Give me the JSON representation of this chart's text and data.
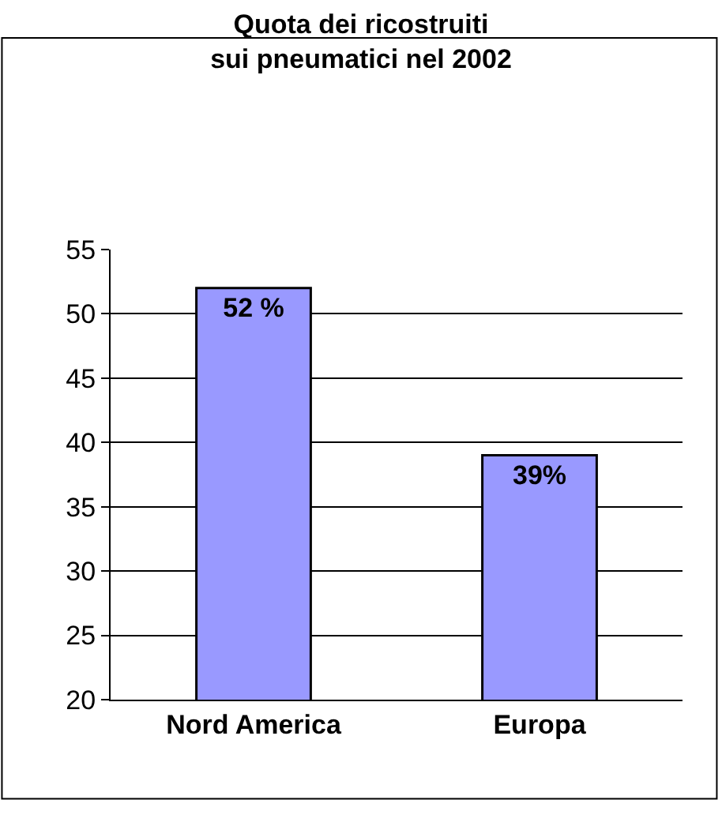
{
  "chart_data": {
    "type": "bar",
    "title": "Quota dei ricostruiti\nsui pneumatici nel 2002",
    "categories": [
      "Nord America",
      "Europa"
    ],
    "values": [
      52,
      39
    ],
    "value_labels": [
      "52 %",
      "39%"
    ],
    "color": "#9999ff",
    "ylim": [
      20,
      55
    ],
    "yticks": [
      20,
      25,
      30,
      35,
      40,
      45,
      50,
      55
    ],
    "grid": "y",
    "legend": false
  }
}
